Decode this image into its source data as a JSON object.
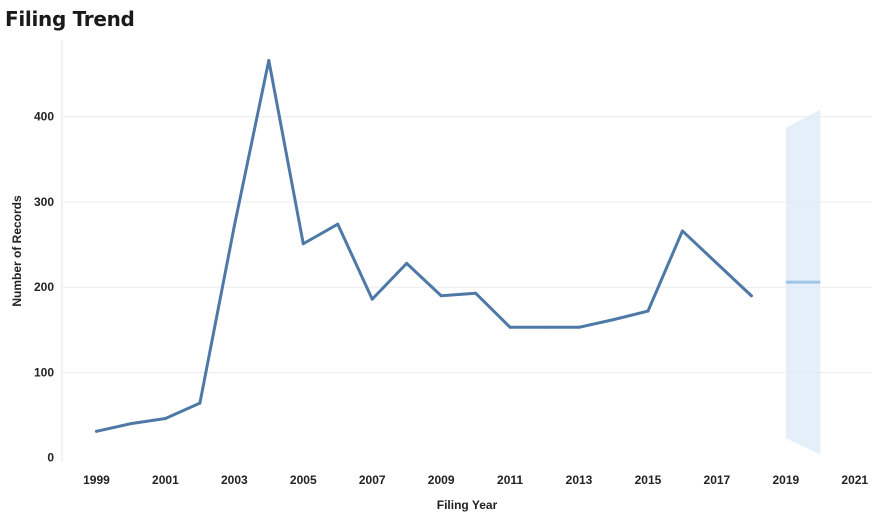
{
  "title": "Filing Trend",
  "chart_data": {
    "type": "line",
    "title": "Filing Trend",
    "xlabel": "Filing Year",
    "ylabel": "Number of Records",
    "xlim": [
      1998,
      2021.5
    ],
    "ylim": [
      -5,
      490
    ],
    "x_ticks": [
      1999,
      2001,
      2003,
      2005,
      2007,
      2009,
      2011,
      2013,
      2015,
      2017,
      2019,
      2021
    ],
    "y_ticks": [
      0,
      100,
      200,
      300,
      400
    ],
    "grid": "horizontal",
    "series": [
      {
        "color": "#4e79a7",
        "x": [
          1999,
          2000,
          2001,
          2002,
          2003,
          2004,
          2005,
          2006,
          2007,
          2008,
          2009,
          2010,
          2011,
          2012,
          2013,
          2014,
          2015,
          2016,
          2017,
          2018
        ],
        "values": [
          31,
          40,
          46,
          64,
          272,
          466,
          251,
          274,
          186,
          228,
          190,
          193,
          153,
          153,
          153,
          162,
          172,
          266,
          228,
          190
        ]
      }
    ],
    "forecast": {
      "line_color": "#a0c4e8",
      "band_color": "#deebf7",
      "x": [
        2019,
        2020
      ],
      "values": [
        206,
        206
      ],
      "upper": [
        387,
        408
      ],
      "lower": [
        23,
        4
      ]
    }
  }
}
